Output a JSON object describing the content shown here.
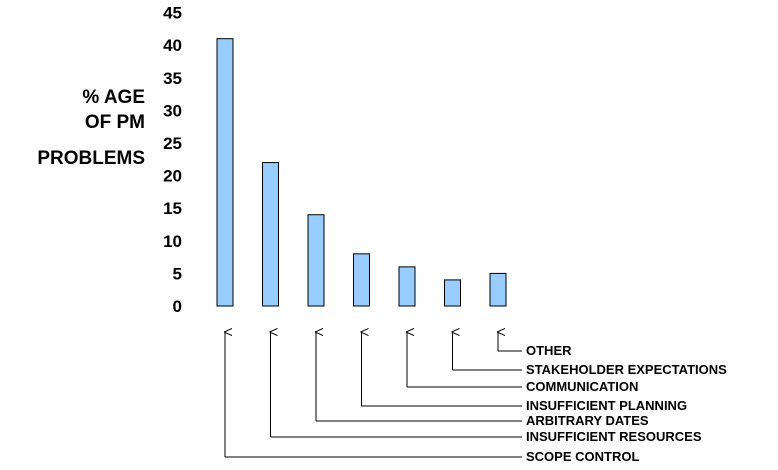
{
  "chart_data": {
    "type": "bar",
    "ylabel_lines": [
      "% AGE",
      "OF PM",
      "PROBLEMS"
    ],
    "yticks": [
      0,
      5,
      10,
      15,
      20,
      25,
      30,
      35,
      40,
      45
    ],
    "ylim": [
      0,
      45
    ],
    "categories": [
      "SCOPE CONTROL",
      "INSUFFICIENT RESOURCES",
      "ARBITRARY DATES",
      "INSUFFICIENT PLANNING",
      "COMMUNICATION",
      "STAKEHOLDER EXPECTATIONS",
      "OTHER"
    ],
    "values": [
      41,
      22,
      14,
      8,
      6,
      4,
      5
    ],
    "bar_color": "#99ccff",
    "bar_stroke": "#000000",
    "grid": false,
    "legend": "none",
    "category_labels": "leader lines with arrows pointing up to each bar"
  }
}
